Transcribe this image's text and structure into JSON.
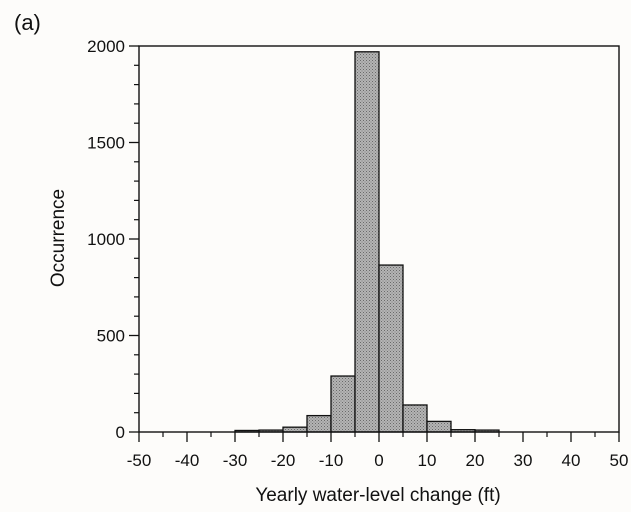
{
  "panel_label": "(a)",
  "chart_data": {
    "type": "bar",
    "title": "",
    "xlabel": "Yearly water-level change (ft)",
    "ylabel": "Occurrence",
    "xlim": [
      -50,
      50
    ],
    "ylim": [
      0,
      2000
    ],
    "x_ticks": [
      -50,
      -40,
      -30,
      -20,
      -10,
      0,
      10,
      20,
      30,
      40,
      50
    ],
    "x_minor_step": 5,
    "y_ticks": [
      0,
      500,
      1000,
      1500,
      2000
    ],
    "y_minor_step": 100,
    "grid": false,
    "bin_width": 5,
    "bins": [
      {
        "x0": -30,
        "x1": -25,
        "value": 8
      },
      {
        "x0": -25,
        "x1": -20,
        "value": 10
      },
      {
        "x0": -20,
        "x1": -15,
        "value": 25
      },
      {
        "x0": -15,
        "x1": -10,
        "value": 85
      },
      {
        "x0": -10,
        "x1": -5,
        "value": 290
      },
      {
        "x0": -5,
        "x1": 0,
        "value": 1970
      },
      {
        "x0": 0,
        "x1": 5,
        "value": 865
      },
      {
        "x0": 5,
        "x1": 10,
        "value": 140
      },
      {
        "x0": 10,
        "x1": 15,
        "value": 55
      },
      {
        "x0": 15,
        "x1": 20,
        "value": 12
      },
      {
        "x0": 20,
        "x1": 25,
        "value": 10
      }
    ],
    "bar_color": "#a4a4a4"
  }
}
